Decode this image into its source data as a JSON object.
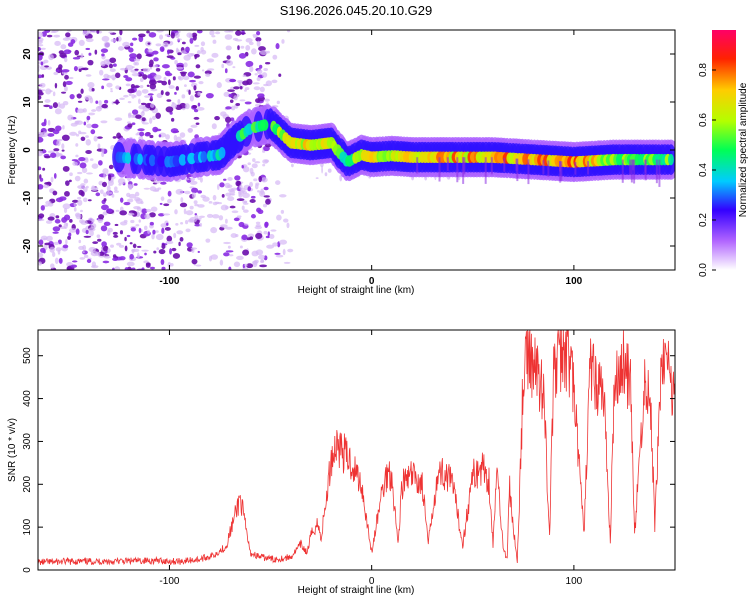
{
  "title": "S196.2026.045.20.10.G29",
  "chart_data": [
    {
      "type": "heatmap",
      "xlabel": "Height of straight line (km)",
      "ylabel": "Frequency (Hz)",
      "xlim": [
        -165,
        150
      ],
      "ylim": [
        -25,
        25
      ],
      "x_ticks": [
        -100,
        0,
        100
      ],
      "y_ticks": [
        -20,
        -10,
        0,
        10,
        20
      ],
      "colorbar": {
        "label": "Normalized spectral amplitude",
        "range": [
          0,
          0.96
        ],
        "ticks": [
          "0.0",
          "0.2",
          "0.4",
          "0.6",
          "0.8"
        ],
        "colormap": [
          "#ffffff",
          "#9900ff",
          "#0000ff",
          "#00ffff",
          "#00ff00",
          "#ffff00",
          "#ff0000",
          "#ff0066"
        ]
      },
      "ridge": {
        "x": [
          -125,
          -100,
          -85,
          -75,
          -68,
          -60,
          -50,
          -40,
          -30,
          -20,
          -12,
          -5,
          0,
          10,
          20,
          40,
          60,
          80,
          100,
          120,
          148
        ],
        "freq": [
          -1.5,
          -2.5,
          -1.5,
          -1.0,
          2.0,
          4.5,
          5.5,
          1.5,
          1.0,
          1.5,
          -2.5,
          -1.0,
          -1.5,
          -1.2,
          -1.5,
          -1.5,
          -1.5,
          -2.0,
          -2.5,
          -2.0,
          -2.0
        ],
        "amplitude": [
          0.35,
          0.3,
          0.35,
          0.4,
          0.45,
          0.5,
          0.55,
          0.65,
          0.75,
          0.7,
          0.45,
          0.7,
          0.8,
          0.6,
          0.7,
          0.75,
          0.8,
          0.8,
          0.8,
          0.6,
          0.55
        ]
      }
    },
    {
      "type": "line",
      "xlabel": "Height of straight line (km)",
      "ylabel": "SNR (10 * v/v)",
      "xlim": [
        -165,
        150
      ],
      "ylim": [
        0,
        560
      ],
      "x_ticks": [
        -100,
        0,
        100
      ],
      "y_ticks": [
        0,
        100,
        200,
        300,
        400,
        500
      ],
      "series": [
        {
          "color": "#ee3333",
          "x": [
            -165,
            -150,
            -130,
            -110,
            -95,
            -85,
            -78,
            -72,
            -68,
            -65,
            -62,
            -60,
            -55,
            -48,
            -40,
            -35,
            -32,
            -30,
            -27,
            -25,
            -22,
            -20,
            -17,
            -15,
            -10,
            -5,
            0,
            5,
            8,
            10,
            13,
            15,
            20,
            25,
            28,
            32,
            35,
            40,
            45,
            50,
            55,
            58,
            60,
            62,
            65,
            67,
            68,
            70,
            72,
            75,
            78,
            80,
            85,
            88,
            90,
            95,
            98,
            100,
            105,
            108,
            110,
            115,
            118,
            120,
            125,
            128,
            130,
            135,
            138,
            140,
            143,
            145,
            148,
            150
          ],
          "y": [
            18,
            20,
            20,
            22,
            20,
            25,
            35,
            55,
            120,
            170,
            90,
            40,
            30,
            25,
            30,
            60,
            40,
            80,
            110,
            75,
            180,
            260,
            300,
            280,
            250,
            200,
            40,
            180,
            230,
            220,
            60,
            200,
            220,
            200,
            60,
            210,
            230,
            200,
            60,
            220,
            240,
            210,
            60,
            230,
            60,
            20,
            200,
            100,
            20,
            450,
            500,
            480,
            420,
            80,
            460,
            520,
            480,
            420,
            80,
            480,
            450,
            400,
            60,
            450,
            480,
            430,
            80,
            440,
            380,
            100,
            460,
            500,
            430,
            420
          ]
        }
      ]
    }
  ]
}
